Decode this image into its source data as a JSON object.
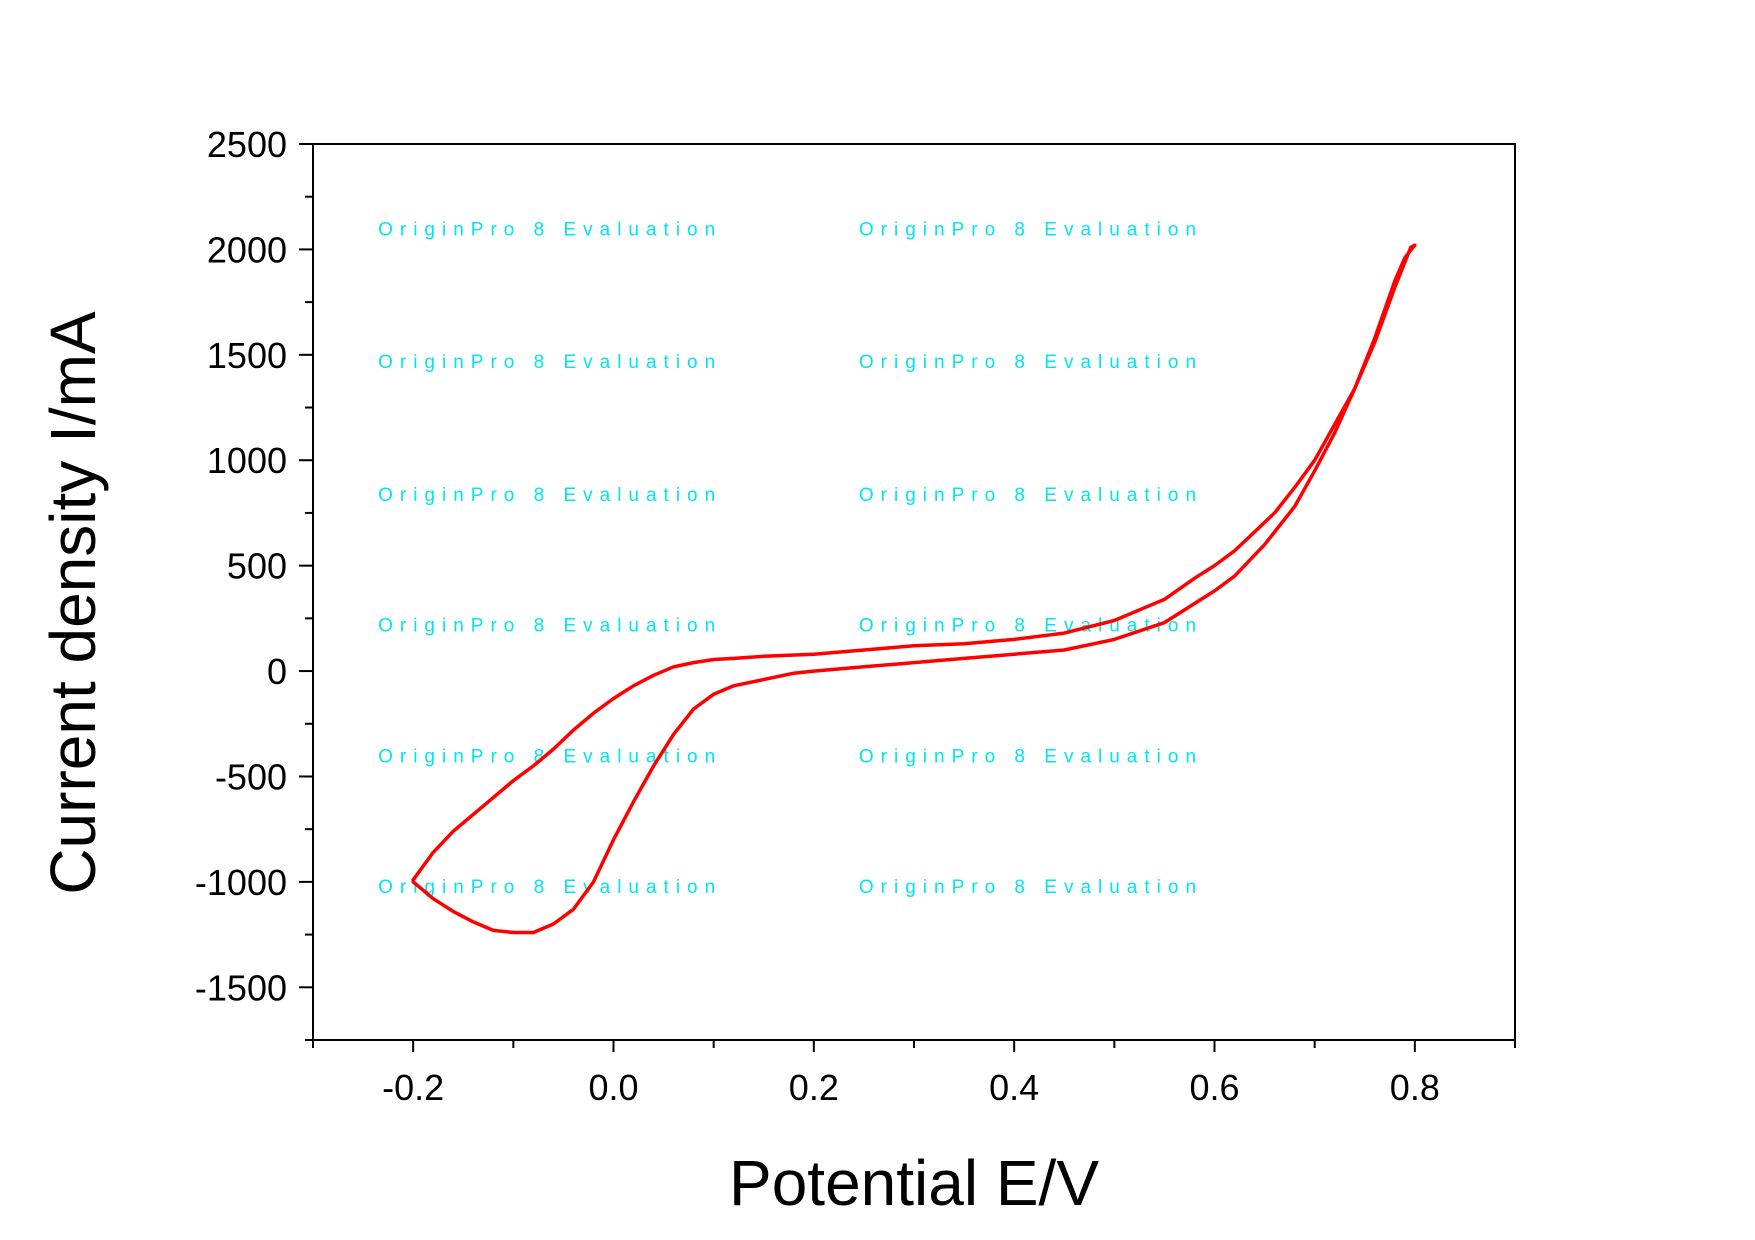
{
  "chart_data": {
    "type": "line",
    "title": "",
    "xlabel": "Potential E/V",
    "ylabel": "Current density I/mA",
    "xlim": [
      -0.3,
      0.9
    ],
    "ylim": [
      -1750,
      2500
    ],
    "x_ticks": [
      {
        "value": -0.2,
        "label": "-0.2"
      },
      {
        "value": 0.0,
        "label": "0.0"
      },
      {
        "value": 0.2,
        "label": "0.2"
      },
      {
        "value": 0.4,
        "label": "0.4"
      },
      {
        "value": 0.6,
        "label": "0.6"
      },
      {
        "value": 0.8,
        "label": "0.8"
      }
    ],
    "x_minor_ticks": [
      -0.3,
      -0.1,
      0.1,
      0.3,
      0.5,
      0.7,
      0.9
    ],
    "y_ticks": [
      {
        "value": 2500,
        "label": "2500"
      },
      {
        "value": 2000,
        "label": "2000"
      },
      {
        "value": 1500,
        "label": "1500"
      },
      {
        "value": 1000,
        "label": "1000"
      },
      {
        "value": 500,
        "label": "500"
      },
      {
        "value": 0,
        "label": "0"
      },
      {
        "value": -500,
        "label": "-500"
      },
      {
        "value": -1000,
        "label": "-1000"
      },
      {
        "value": -1500,
        "label": "-1500"
      }
    ],
    "y_minor_ticks": [
      2250,
      1750,
      1250,
      750,
      250,
      -250,
      -750,
      -1250,
      -1750
    ],
    "grid": false,
    "legend": "none",
    "line_color": "#ff0000",
    "series": [
      {
        "x": [
          -0.2,
          -0.18,
          -0.16,
          -0.14,
          -0.12,
          -0.1,
          -0.08,
          -0.06,
          -0.04,
          -0.02,
          0.0,
          0.02,
          0.04,
          0.06,
          0.08,
          0.1,
          0.12,
          0.15,
          0.18,
          0.2,
          0.25,
          0.3,
          0.35,
          0.4,
          0.45,
          0.5,
          0.55,
          0.6,
          0.62,
          0.65,
          0.68,
          0.7,
          0.72,
          0.74,
          0.76,
          0.78,
          0.79,
          0.8,
          0.796,
          0.78,
          0.76,
          0.74,
          0.72,
          0.7,
          0.68,
          0.66,
          0.64,
          0.62,
          0.6,
          0.58,
          0.55,
          0.5,
          0.45,
          0.4,
          0.35,
          0.3,
          0.25,
          0.2,
          0.15,
          0.12,
          0.1,
          0.08,
          0.06,
          0.04,
          0.02,
          0.0,
          -0.02,
          -0.04,
          -0.06,
          -0.08,
          -0.1,
          -0.12,
          -0.14,
          -0.16,
          -0.18,
          -0.2
        ],
        "y": [
          -1000,
          -1080,
          -1140,
          -1190,
          -1230,
          -1240,
          -1240,
          -1200,
          -1130,
          -1000,
          -800,
          -620,
          -450,
          -300,
          -180,
          -110,
          -70,
          -40,
          -10,
          0,
          20,
          40,
          60,
          80,
          100,
          150,
          230,
          380,
          450,
          600,
          780,
          950,
          1130,
          1340,
          1580,
          1850,
          1960,
          2020,
          2010,
          1820,
          1560,
          1340,
          1170,
          1000,
          870,
          750,
          660,
          570,
          500,
          440,
          340,
          240,
          180,
          150,
          130,
          120,
          100,
          80,
          70,
          60,
          55,
          40,
          20,
          -20,
          -70,
          -130,
          -200,
          -280,
          -370,
          -450,
          -520,
          -600,
          -680,
          -760,
          -860,
          -990
        ]
      }
    ],
    "watermark": {
      "text": "OriginPro 8 Evaluation",
      "color": "#00e5ee",
      "rows": [
        2100,
        1470,
        840,
        220,
        -400,
        -1020
      ],
      "cols": [
        -0.235,
        0.245
      ]
    }
  }
}
